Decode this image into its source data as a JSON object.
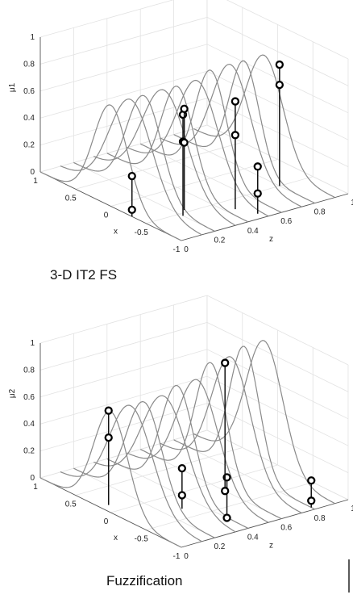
{
  "chart_data": [
    {
      "type": "line",
      "subtype": "3d-membership-surfaces",
      "zlabel": "μ1",
      "xlabel": "x",
      "ylabel": "z",
      "x_ticks": [
        "1",
        "0.5",
        "0",
        "-0.5",
        "-1"
      ],
      "y_ticks": [
        "0",
        "0.2",
        "0.4",
        "0.6",
        "0.8",
        "1"
      ],
      "z_ticks": [
        "0",
        "0.2",
        "0.4",
        "0.6",
        "0.8",
        "1"
      ],
      "xlim": [
        -1,
        1
      ],
      "ylim": [
        0,
        1
      ],
      "zlim": [
        0,
        1
      ],
      "grid": true,
      "caption": "3-D IT2 FS",
      "series": [
        {
          "y": 0.0,
          "center_x": 0,
          "peak": 0.75
        },
        {
          "y": 0.2,
          "center_x": 0,
          "peak": 0.75
        },
        {
          "y": 0.4,
          "center_x": 0,
          "peak": 0.75
        },
        {
          "y": 0.6,
          "center_x": 0,
          "peak": 0.8
        },
        {
          "y": 0.8,
          "center_x": 0,
          "peak": 0.8
        }
      ],
      "stems": [
        {
          "x": -0.3,
          "y": 0.0,
          "upper": 0.3,
          "lower": 0.05
        },
        {
          "x": -0.55,
          "y": 0.2,
          "upper": 0.75,
          "lower": 0.55
        },
        {
          "x": -0.45,
          "y": 0.25,
          "upper": 0.75,
          "lower": 0.5
        },
        {
          "x": -0.7,
          "y": 0.45,
          "upper": 0.8,
          "lower": 0.55
        },
        {
          "x": -0.9,
          "y": 0.5,
          "upper": 0.35,
          "lower": 0.15
        },
        {
          "x": -0.5,
          "y": 0.8,
          "upper": 0.9,
          "lower": 0.75
        }
      ]
    },
    {
      "type": "line",
      "subtype": "3d-membership-surfaces",
      "zlabel": "μ2",
      "xlabel": "x",
      "ylabel": "z",
      "x_ticks": [
        "1",
        "0.5",
        "0",
        "-0.5",
        "-1"
      ],
      "y_ticks": [
        "0",
        "0.2",
        "0.4",
        "0.6",
        "0.8",
        "1"
      ],
      "z_ticks": [
        "0",
        "0.2",
        "0.4",
        "0.6",
        "0.8",
        "1"
      ],
      "xlim": [
        -1,
        1
      ],
      "ylim": [
        0,
        1
      ],
      "zlim": [
        0,
        1
      ],
      "grid": true,
      "caption": "Fuzzification",
      "series": [
        {
          "y": 0.0,
          "center_x": 0,
          "peak": 0.75
        },
        {
          "y": 0.2,
          "center_x": 0,
          "peak": 0.75
        },
        {
          "y": 0.4,
          "center_x": 0,
          "peak": 0.8
        },
        {
          "y": 0.6,
          "center_x": 0,
          "peak": 0.9
        },
        {
          "y": 0.8,
          "center_x": 0,
          "peak": 0.95
        }
      ],
      "stems": [
        {
          "x": 0.15,
          "y": 0.05,
          "upper": 0.7,
          "lower": 0.5
        },
        {
          "x": -0.3,
          "y": 0.3,
          "upper": 0.3,
          "lower": 0.1
        },
        {
          "x": -0.7,
          "y": 0.4,
          "upper": 0.3,
          "lower": 0.0
        },
        {
          "x": -0.2,
          "y": 0.6,
          "upper": 0.95,
          "lower": 0.0
        },
        {
          "x": -0.95,
          "y": 0.8,
          "upper": 0.2,
          "lower": 0.05
        }
      ]
    }
  ]
}
